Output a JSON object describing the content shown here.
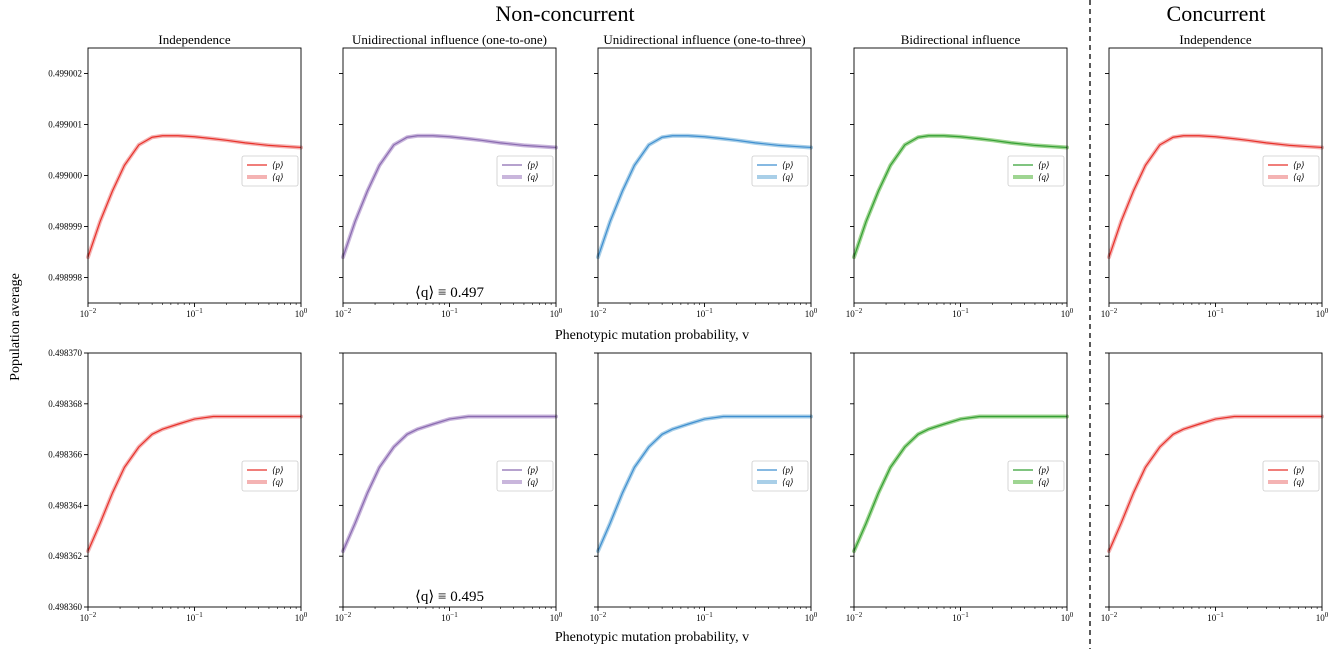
{
  "figure": {
    "group_noncurrent": "Non-concurrent",
    "group_concurrent": "Concurrent",
    "ylabel": "Population average",
    "xlabel": "Phenotypic mutation probability, v",
    "panel_titles": [
      "Independence",
      "Unidirectional influence (one-to-one)",
      "Unidirectional influence (one-to-three)",
      "Bidirectional influence",
      "Independence"
    ],
    "annotations": [
      "⟨q⟩ ≡ 0.497",
      "⟨q⟩ ≡ 0.495"
    ],
    "legend_labels": [
      "⟨p⟩",
      "⟨q⟩"
    ],
    "colors": [
      "#e8312a",
      "#8a6bb0",
      "#3f8fd0",
      "#35a035",
      "#e8312a"
    ],
    "band_colors": [
      "#f4b3b3",
      "#c9b6dc",
      "#a9cfe8",
      "#9fd592",
      "#f4b3b3"
    ]
  },
  "chart_data": [
    {
      "type": "line",
      "row": 1,
      "xscale": "log",
      "xlim": [
        0.01,
        1
      ],
      "xticks": [
        "10^-2",
        "10^-1",
        "10^0"
      ],
      "ylim": [
        0.4989975,
        0.4990025
      ],
      "yticks": [
        "0.498998",
        "0.498999",
        "0.499000",
        "0.499001",
        "0.499002"
      ],
      "x": [
        0.01,
        0.013,
        0.017,
        0.022,
        0.03,
        0.04,
        0.05,
        0.07,
        0.1,
        0.15,
        0.2,
        0.3,
        0.5,
        0.7,
        1.0
      ],
      "series": [
        {
          "name": "⟨p⟩",
          "values": [
            0.4989984,
            0.4989991,
            0.4989997,
            0.4990002,
            0.4990006,
            0.49900075,
            0.49900078,
            0.49900078,
            0.49900076,
            0.49900072,
            0.49900069,
            0.49900064,
            0.49900059,
            0.49900057,
            0.49900055
          ]
        }
      ]
    },
    {
      "type": "line",
      "row": 2,
      "xscale": "log",
      "xlim": [
        0.01,
        1
      ],
      "xticks": [
        "10^-2",
        "10^-1",
        "10^0"
      ],
      "ylim": [
        0.49836,
        0.49837
      ],
      "yticks": [
        "0.498360",
        "0.498362",
        "0.498364",
        "0.498366",
        "0.498368",
        "0.498370"
      ],
      "x": [
        0.01,
        0.013,
        0.017,
        0.022,
        0.03,
        0.04,
        0.05,
        0.07,
        0.1,
        0.15,
        0.2,
        0.3,
        0.5,
        0.7,
        1.0
      ],
      "series": [
        {
          "name": "⟨p⟩",
          "values": [
            0.4983622,
            0.4983633,
            0.4983645,
            0.4983655,
            0.4983663,
            0.4983668,
            0.498367,
            0.4983672,
            0.4983674,
            0.4983675,
            0.4983675,
            0.4983675,
            0.4983675,
            0.4983675,
            0.4983675
          ]
        }
      ]
    }
  ]
}
